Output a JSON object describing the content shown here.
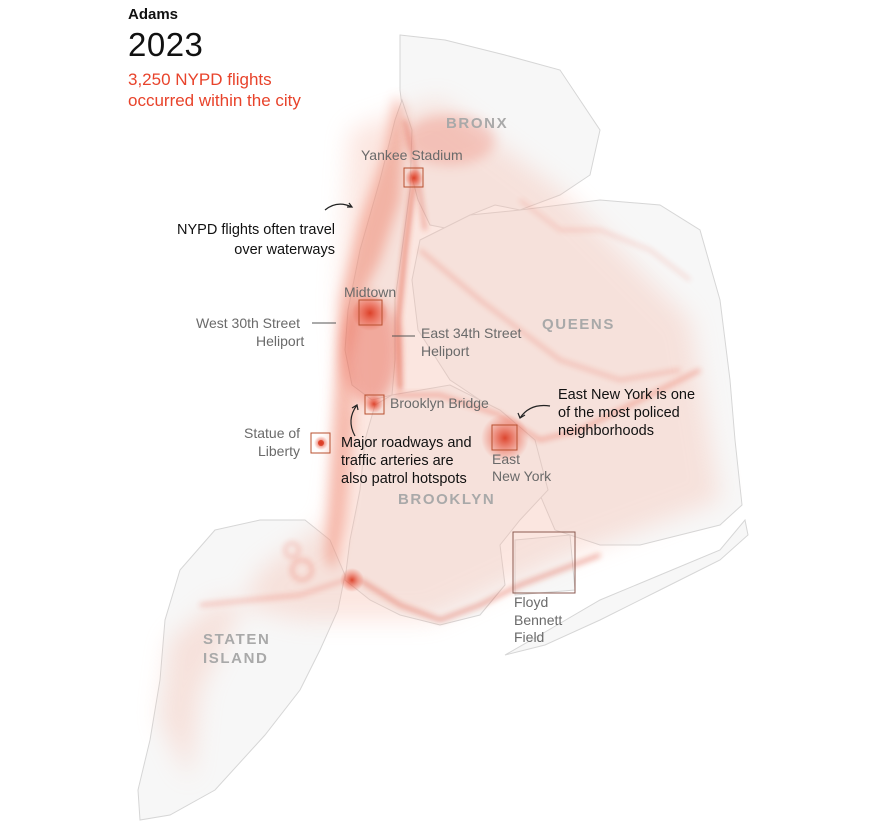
{
  "header": {
    "administration": "Adams",
    "year": "2023",
    "subtitle_line1": "3,250 NYPD flights",
    "subtitle_line2": "occurred within the city"
  },
  "boroughs": {
    "bronx": "BRONX",
    "queens": "QUEENS",
    "brooklyn": "BROOKLYN",
    "staten_island_line1": "STATEN",
    "staten_island_line2": "ISLAND"
  },
  "places": {
    "yankee_stadium": "Yankee Stadium",
    "midtown": "Midtown",
    "west_30th_line1": "West 30th Street",
    "west_30th_line2": "Heliport",
    "east_34th_line1": "East 34th Street",
    "east_34th_line2": "Heliport",
    "brooklyn_bridge": "Brooklyn Bridge",
    "statue_line1": "Statue of",
    "statue_line2": "Liberty",
    "east_ny_line1": "East",
    "east_ny_line2": "New York",
    "floyd_line1": "Floyd",
    "floyd_line2": "Bennett",
    "floyd_line3": "Field"
  },
  "annotations": {
    "waterways_line1": "NYPD flights often travel",
    "waterways_line2": "over waterways",
    "roadways_line1": "Major roadways and",
    "roadways_line2": "traffic arteries are",
    "roadways_line3": "also patrol hotspots",
    "eastny_line1": "East New York is one",
    "eastny_line2": "of the most policed",
    "eastny_line3": "neighborhoods"
  },
  "colors": {
    "accent": "#e8432b",
    "heat_core": "#d9351c",
    "land": "#f7f7f7",
    "borough_label": "#a9a9a9"
  }
}
